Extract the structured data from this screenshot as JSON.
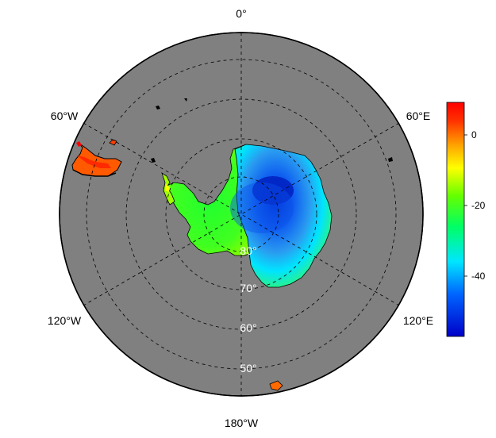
{
  "map": {
    "projection": "south-polar-stereographic",
    "ocean_color": "#808080",
    "background_color": "#ffffff",
    "longitude_labels": [
      "0°",
      "60°E",
      "120°E",
      "180°W",
      "120°W",
      "60°W"
    ],
    "latitude_labels": [
      "80°",
      "70°",
      "60°",
      "50°"
    ],
    "gridline_style": "dashed"
  },
  "colorbar": {
    "colormap": "jet",
    "ticks": [
      "0",
      "-20",
      "-40"
    ],
    "range": [
      -57,
      8
    ],
    "tick_values": [
      0,
      -20,
      -40
    ],
    "colors": [
      "#0000c8",
      "#0064ff",
      "#00e6ff",
      "#00ff64",
      "#64ff00",
      "#ffff00",
      "#ffa000",
      "#ff3200",
      "#ff0000"
    ]
  }
}
